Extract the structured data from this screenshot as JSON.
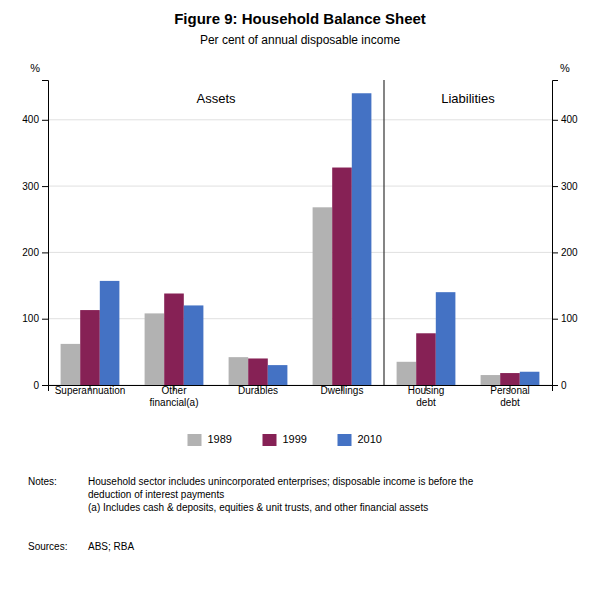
{
  "chart_data": {
    "type": "bar",
    "title": "Figure 9: Household Balance Sheet",
    "subtitle": "Per cent of annual disposable income",
    "categories": [
      "Superannuation",
      "Other\nfinancial(a)",
      "Durables",
      "Dwellings",
      "Housing\ndebt",
      "Personal\ndebt"
    ],
    "series": [
      {
        "name": "1989",
        "color": "#b2b2b2",
        "values": [
          62,
          108,
          42,
          268,
          35,
          15
        ]
      },
      {
        "name": "1999",
        "color": "#862155",
        "values": [
          113,
          138,
          40,
          328,
          78,
          18
        ]
      },
      {
        "name": "2010",
        "color": "#4472c4",
        "values": [
          157,
          120,
          30,
          440,
          140,
          20
        ]
      }
    ],
    "ylim": [
      0,
      460
    ],
    "yticks": [
      0,
      100,
      200,
      300,
      400
    ],
    "y2lim": [
      0,
      460
    ],
    "y2ticks": [
      0,
      100,
      200,
      300,
      400
    ],
    "ylabel": "%",
    "y2label": "%",
    "annotations": [
      {
        "text": "Assets",
        "x": 1.5,
        "y": 440
      },
      {
        "text": "Liabilities",
        "x": 4.5,
        "y": 440
      }
    ],
    "grid": true,
    "legend": "bottom",
    "notes_label": "Notes:",
    "notes": "Household sector includes unincorporated enterprises; disposable income is before the\ndeduction of interest payments\n(a) Includes cash & deposits, equities & unit trusts, and other financial assets",
    "sources_label": "Sources:",
    "sources": "ABS; RBA"
  }
}
